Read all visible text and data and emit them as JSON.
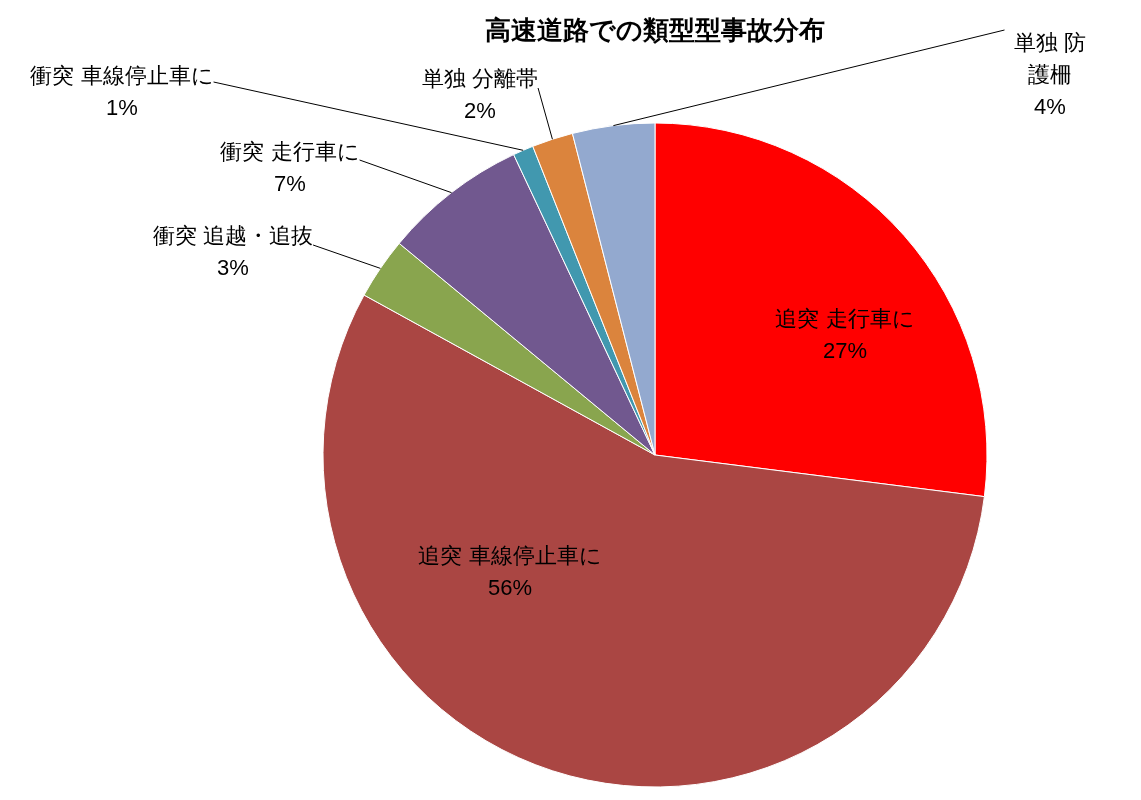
{
  "chart_data": {
    "type": "pie",
    "title": "高速道路での類型型事故分布",
    "categories": [
      "追突 走行車に",
      "追突 車線停止車に",
      "衝突 追越・追抜",
      "衝突 走行車に",
      "衝突 車線停止車に",
      "単独 分離帯",
      "単独 防護柵"
    ],
    "values": [
      27,
      56,
      3,
      7,
      1,
      2,
      4
    ],
    "colors": [
      "#ff0000",
      "#aa4643",
      "#89a54e",
      "#71588f",
      "#4198af",
      "#db843d",
      "#93a9cf"
    ],
    "value_labels": [
      "27%",
      "56%",
      "3%",
      "7%",
      "1%",
      "2%",
      "4%"
    ]
  }
}
